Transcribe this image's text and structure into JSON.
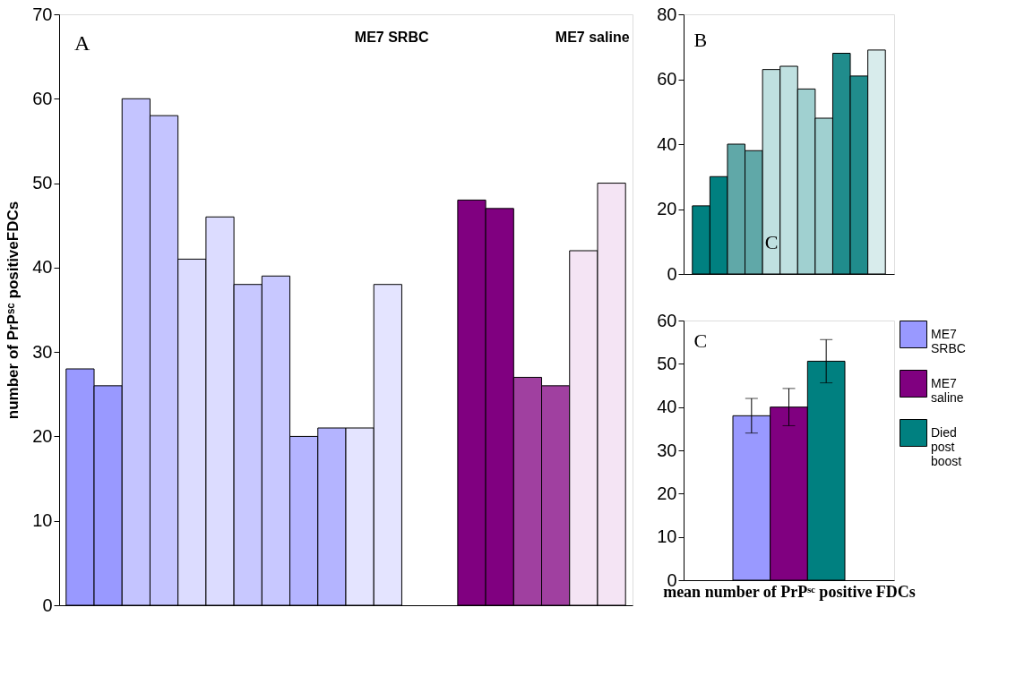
{
  "chart_data": [
    {
      "type": "bar",
      "ylabel": "number of PrPˢᶜ positiveFDCs",
      "annotations": [
        "A",
        "ME7 SRBC",
        "ME7 saline"
      ],
      "categories": [
        null,
        null,
        null,
        null,
        null,
        null,
        null,
        null,
        null,
        null,
        null,
        null,
        null,
        null,
        null,
        null,
        null,
        null,
        null,
        null
      ],
      "values": [
        28,
        26,
        60,
        58,
        41,
        46,
        38,
        39,
        20,
        21,
        21,
        38,
        null,
        null,
        48,
        47,
        27,
        26,
        42,
        50
      ],
      "colors": [
        "#9999ff",
        "#9999ff",
        "#c4c4ff",
        "#c4c4ff",
        "#dcdcff",
        "#dcdcff",
        "#c8c8ff",
        "#c8c8ff",
        "#b4b4ff",
        "#b4b4ff",
        "#e4e4ff",
        "#e4e4ff",
        "#ffffff",
        "#ffffff",
        "#800080",
        "#800080",
        "#a040a0",
        "#a040a0",
        "#f4e4f4",
        "#f4e4f4"
      ],
      "ylim": [
        0,
        70
      ],
      "yticks": [
        0,
        10,
        20,
        30,
        40,
        50,
        60,
        70
      ],
      "grid": false,
      "tick_labels": "y"
    },
    {
      "type": "bar",
      "annotations": [
        "B",
        "C"
      ],
      "categories": [
        null,
        null,
        null,
        null,
        null,
        null,
        null,
        null,
        null,
        null,
        null
      ],
      "values": [
        21,
        30,
        40,
        38,
        63,
        64,
        57,
        48,
        68,
        61,
        69
      ],
      "colors": [
        "#008080",
        "#008080",
        "#60a8a8",
        "#60a8a8",
        "#bfe0e0",
        "#bfe0e0",
        "#a0d0d0",
        "#a0d0d0",
        "#208c8c",
        "#208c8c",
        "#d8ecec"
      ],
      "ylim": [
        0,
        80
      ],
      "yticks": [
        0,
        20,
        40,
        60,
        80
      ],
      "grid": false,
      "tick_labels": "y"
    },
    {
      "type": "bar",
      "xlabel": "mean number of PrPˢᶜ positive FDCs",
      "annotations": [
        "C"
      ],
      "categories": [
        null
      ],
      "series": [
        {
          "name": "ME7 SRBC",
          "color": "#9999ff",
          "values": [
            38
          ],
          "errors": [
            4
          ]
        },
        {
          "name": "ME7 saline",
          "color": "#800080",
          "values": [
            40
          ],
          "errors": [
            4.3
          ]
        },
        {
          "name": "Died post boost",
          "color": "#008080",
          "values": [
            50.6
          ],
          "errors": [
            5
          ]
        }
      ],
      "ylim": [
        0,
        60
      ],
      "yticks": [
        0,
        10,
        20,
        30,
        40,
        50,
        60
      ],
      "grid": false,
      "legend": "right",
      "tick_labels": "y"
    }
  ]
}
